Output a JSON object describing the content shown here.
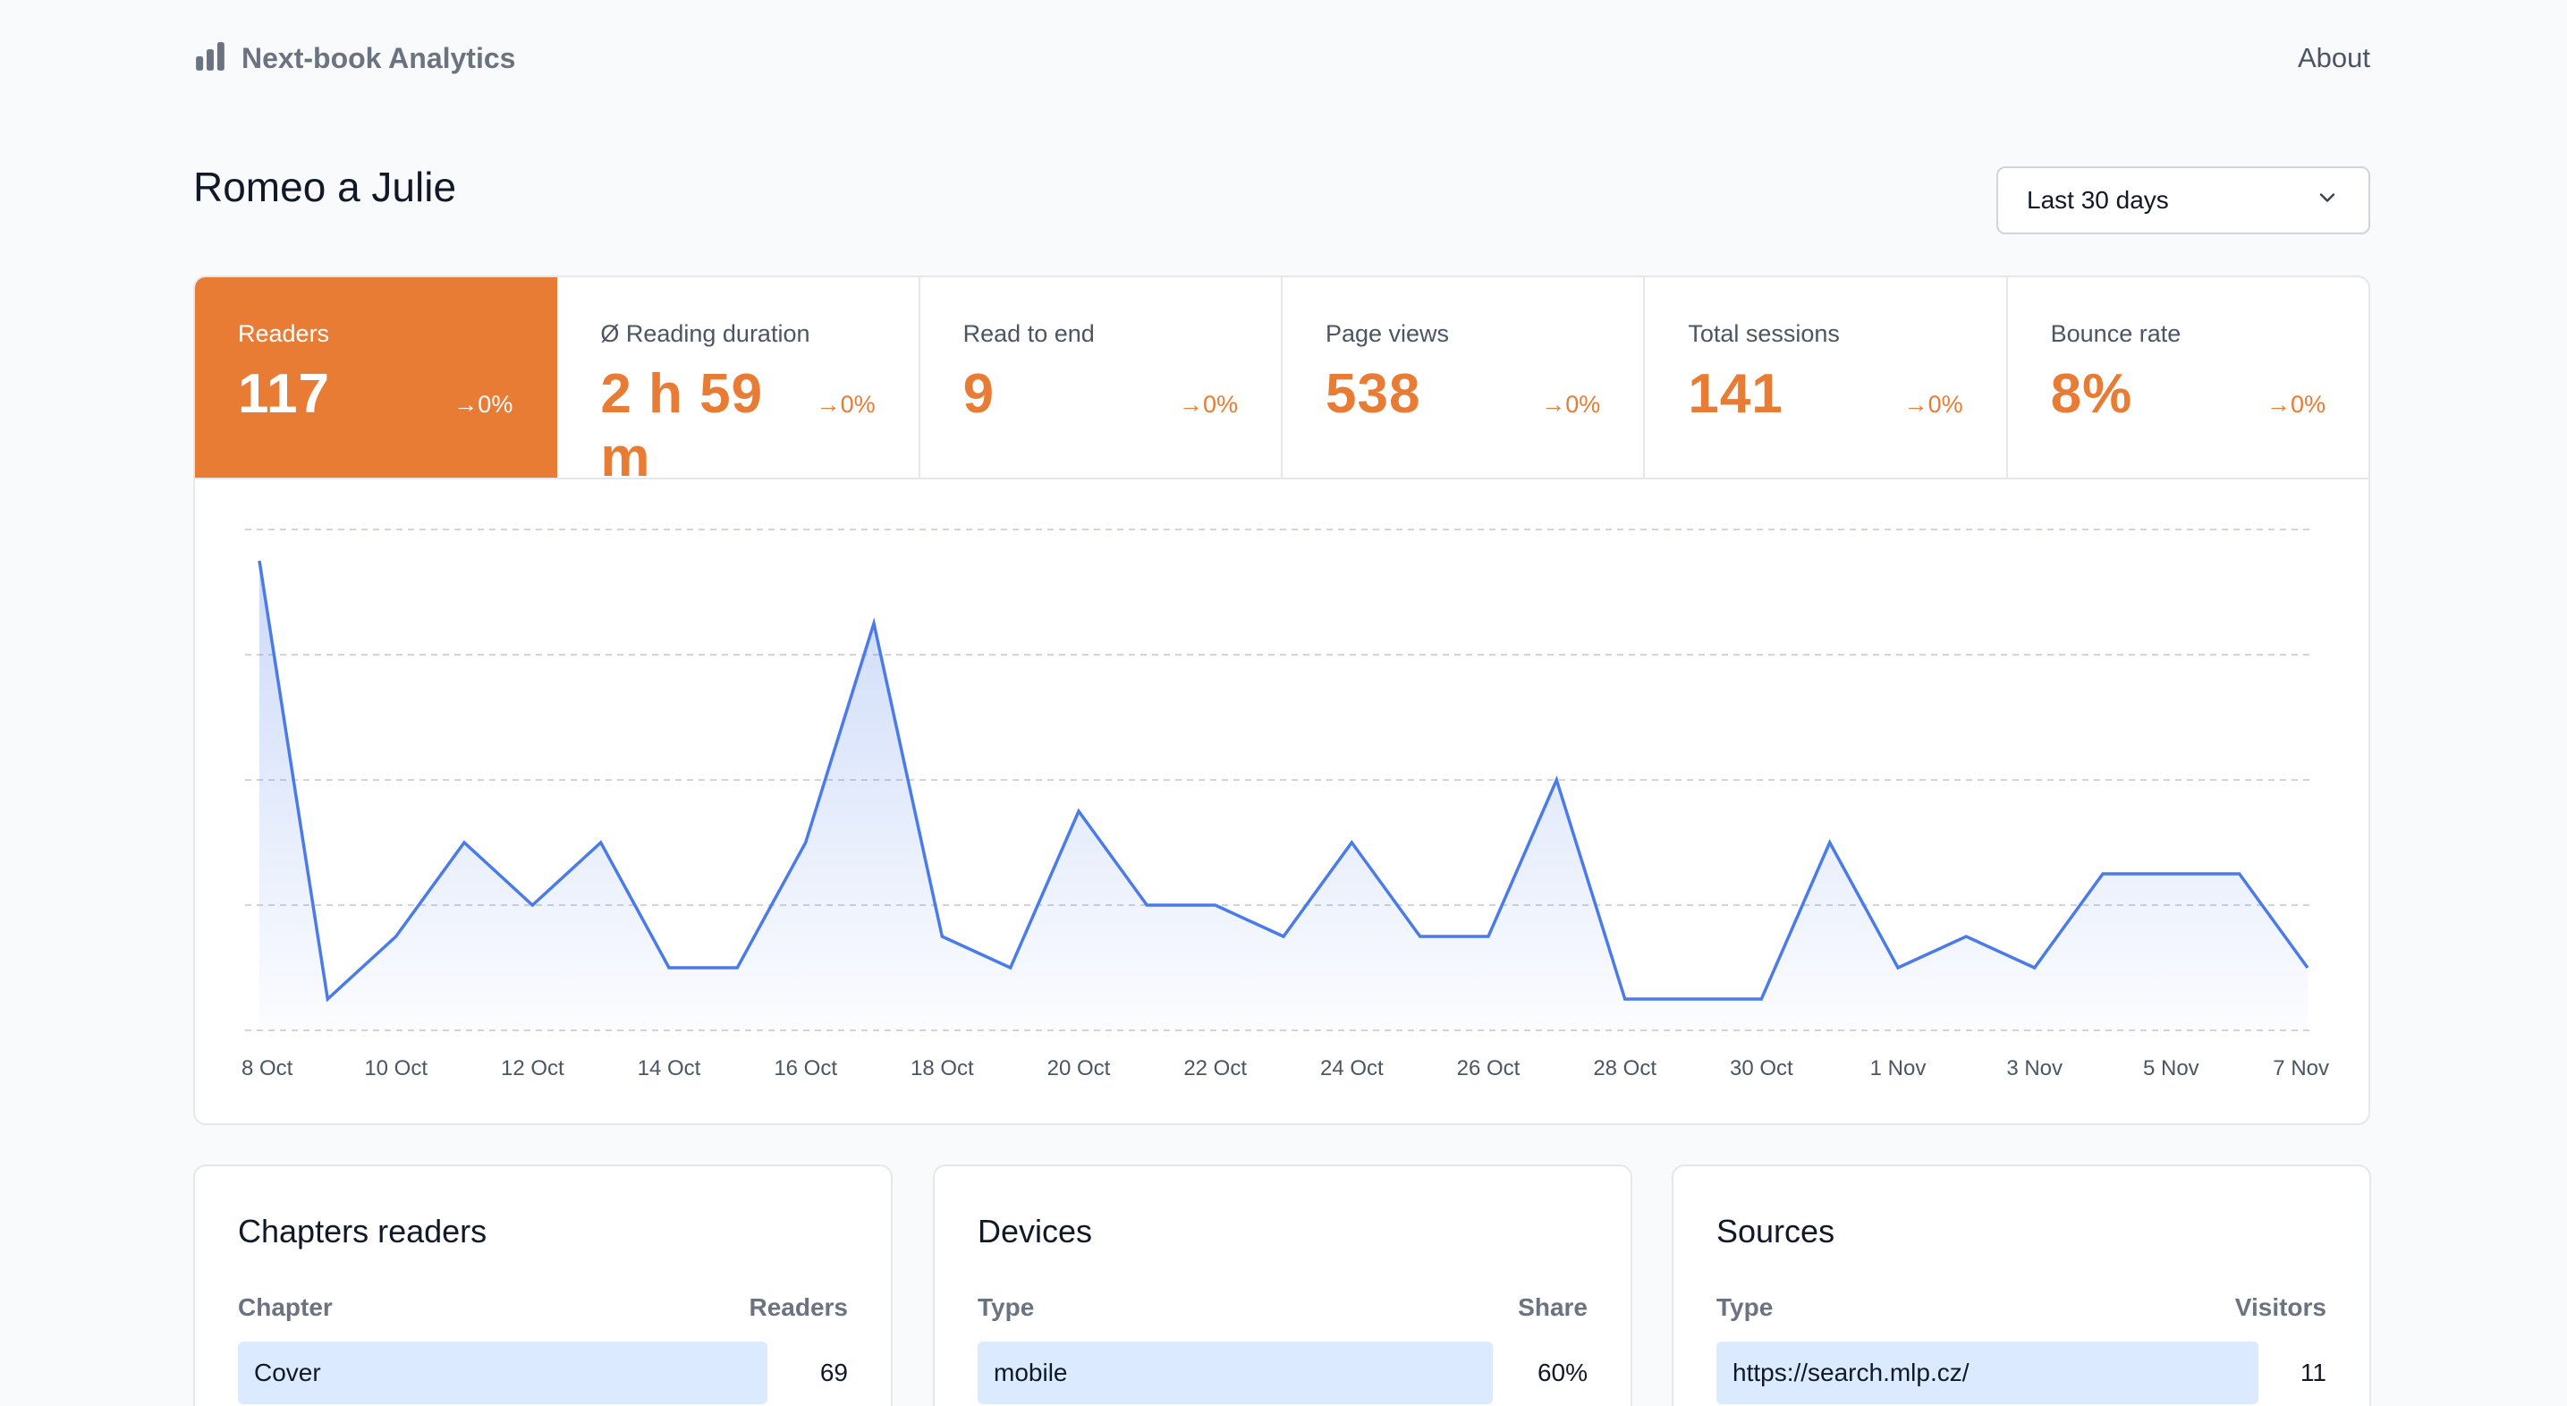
{
  "header": {
    "brand": "Next-book Analytics",
    "about": "About"
  },
  "page": {
    "title": "Romeo a Julie",
    "range": "Last 30 days"
  },
  "stats": [
    {
      "label": "Readers",
      "value": "117",
      "trend": "→0%"
    },
    {
      "label": "Ø Reading duration",
      "value": "2 h 59 m",
      "trend": "→0%"
    },
    {
      "label": "Read to end",
      "value": "9",
      "trend": "→0%"
    },
    {
      "label": "Page views",
      "value": "538",
      "trend": "→0%"
    },
    {
      "label": "Total sessions",
      "value": "141",
      "trend": "→0%"
    },
    {
      "label": "Bounce rate",
      "value": "8%",
      "trend": "→0%"
    }
  ],
  "colors": {
    "accent": "#e97c34",
    "line": "#4a7be8",
    "bar": "#dbeafe"
  },
  "chart_data": {
    "type": "area",
    "x": [
      "8 Oct",
      "9 Oct",
      "10 Oct",
      "11 Oct",
      "12 Oct",
      "13 Oct",
      "14 Oct",
      "15 Oct",
      "16 Oct",
      "17 Oct",
      "18 Oct",
      "19 Oct",
      "20 Oct",
      "21 Oct",
      "22 Oct",
      "23 Oct",
      "24 Oct",
      "25 Oct",
      "26 Oct",
      "27 Oct",
      "28 Oct",
      "29 Oct",
      "30 Oct",
      "31 Oct",
      "1 Nov",
      "2 Nov",
      "3 Nov",
      "4 Nov",
      "5 Nov",
      "6 Nov",
      "7 Nov"
    ],
    "series": [
      {
        "values": [
          15,
          1,
          3,
          6,
          4,
          6,
          2,
          2,
          6,
          13,
          3,
          2,
          7,
          4,
          4,
          3,
          6,
          3,
          3,
          8,
          1,
          1,
          1,
          6,
          2,
          3,
          2,
          5,
          5,
          5,
          2
        ]
      }
    ],
    "xticks": [
      "8 Oct",
      "10 Oct",
      "12 Oct",
      "14 Oct",
      "16 Oct",
      "18 Oct",
      "20 Oct",
      "22 Oct",
      "24 Oct",
      "26 Oct",
      "28 Oct",
      "30 Oct",
      "1 Nov",
      "3 Nov",
      "5 Nov",
      "7 Nov"
    ],
    "ylim": [
      0,
      16
    ],
    "grid": true,
    "legend": "none"
  },
  "panels": {
    "chapters": {
      "title": "Chapters readers",
      "col1": "Chapter",
      "col2": "Readers",
      "rows": [
        {
          "name": "Cover",
          "value": "69",
          "fraction": 1.0
        }
      ]
    },
    "devices": {
      "title": "Devices",
      "col1": "Type",
      "col2": "Share",
      "rows": [
        {
          "name": "mobile",
          "value": "60%",
          "fraction": 1.0
        }
      ]
    },
    "sources": {
      "title": "Sources",
      "col1": "Type",
      "col2": "Visitors",
      "rows": [
        {
          "name": "https://search.mlp.cz/",
          "value": "11",
          "fraction": 1.0
        }
      ]
    }
  }
}
